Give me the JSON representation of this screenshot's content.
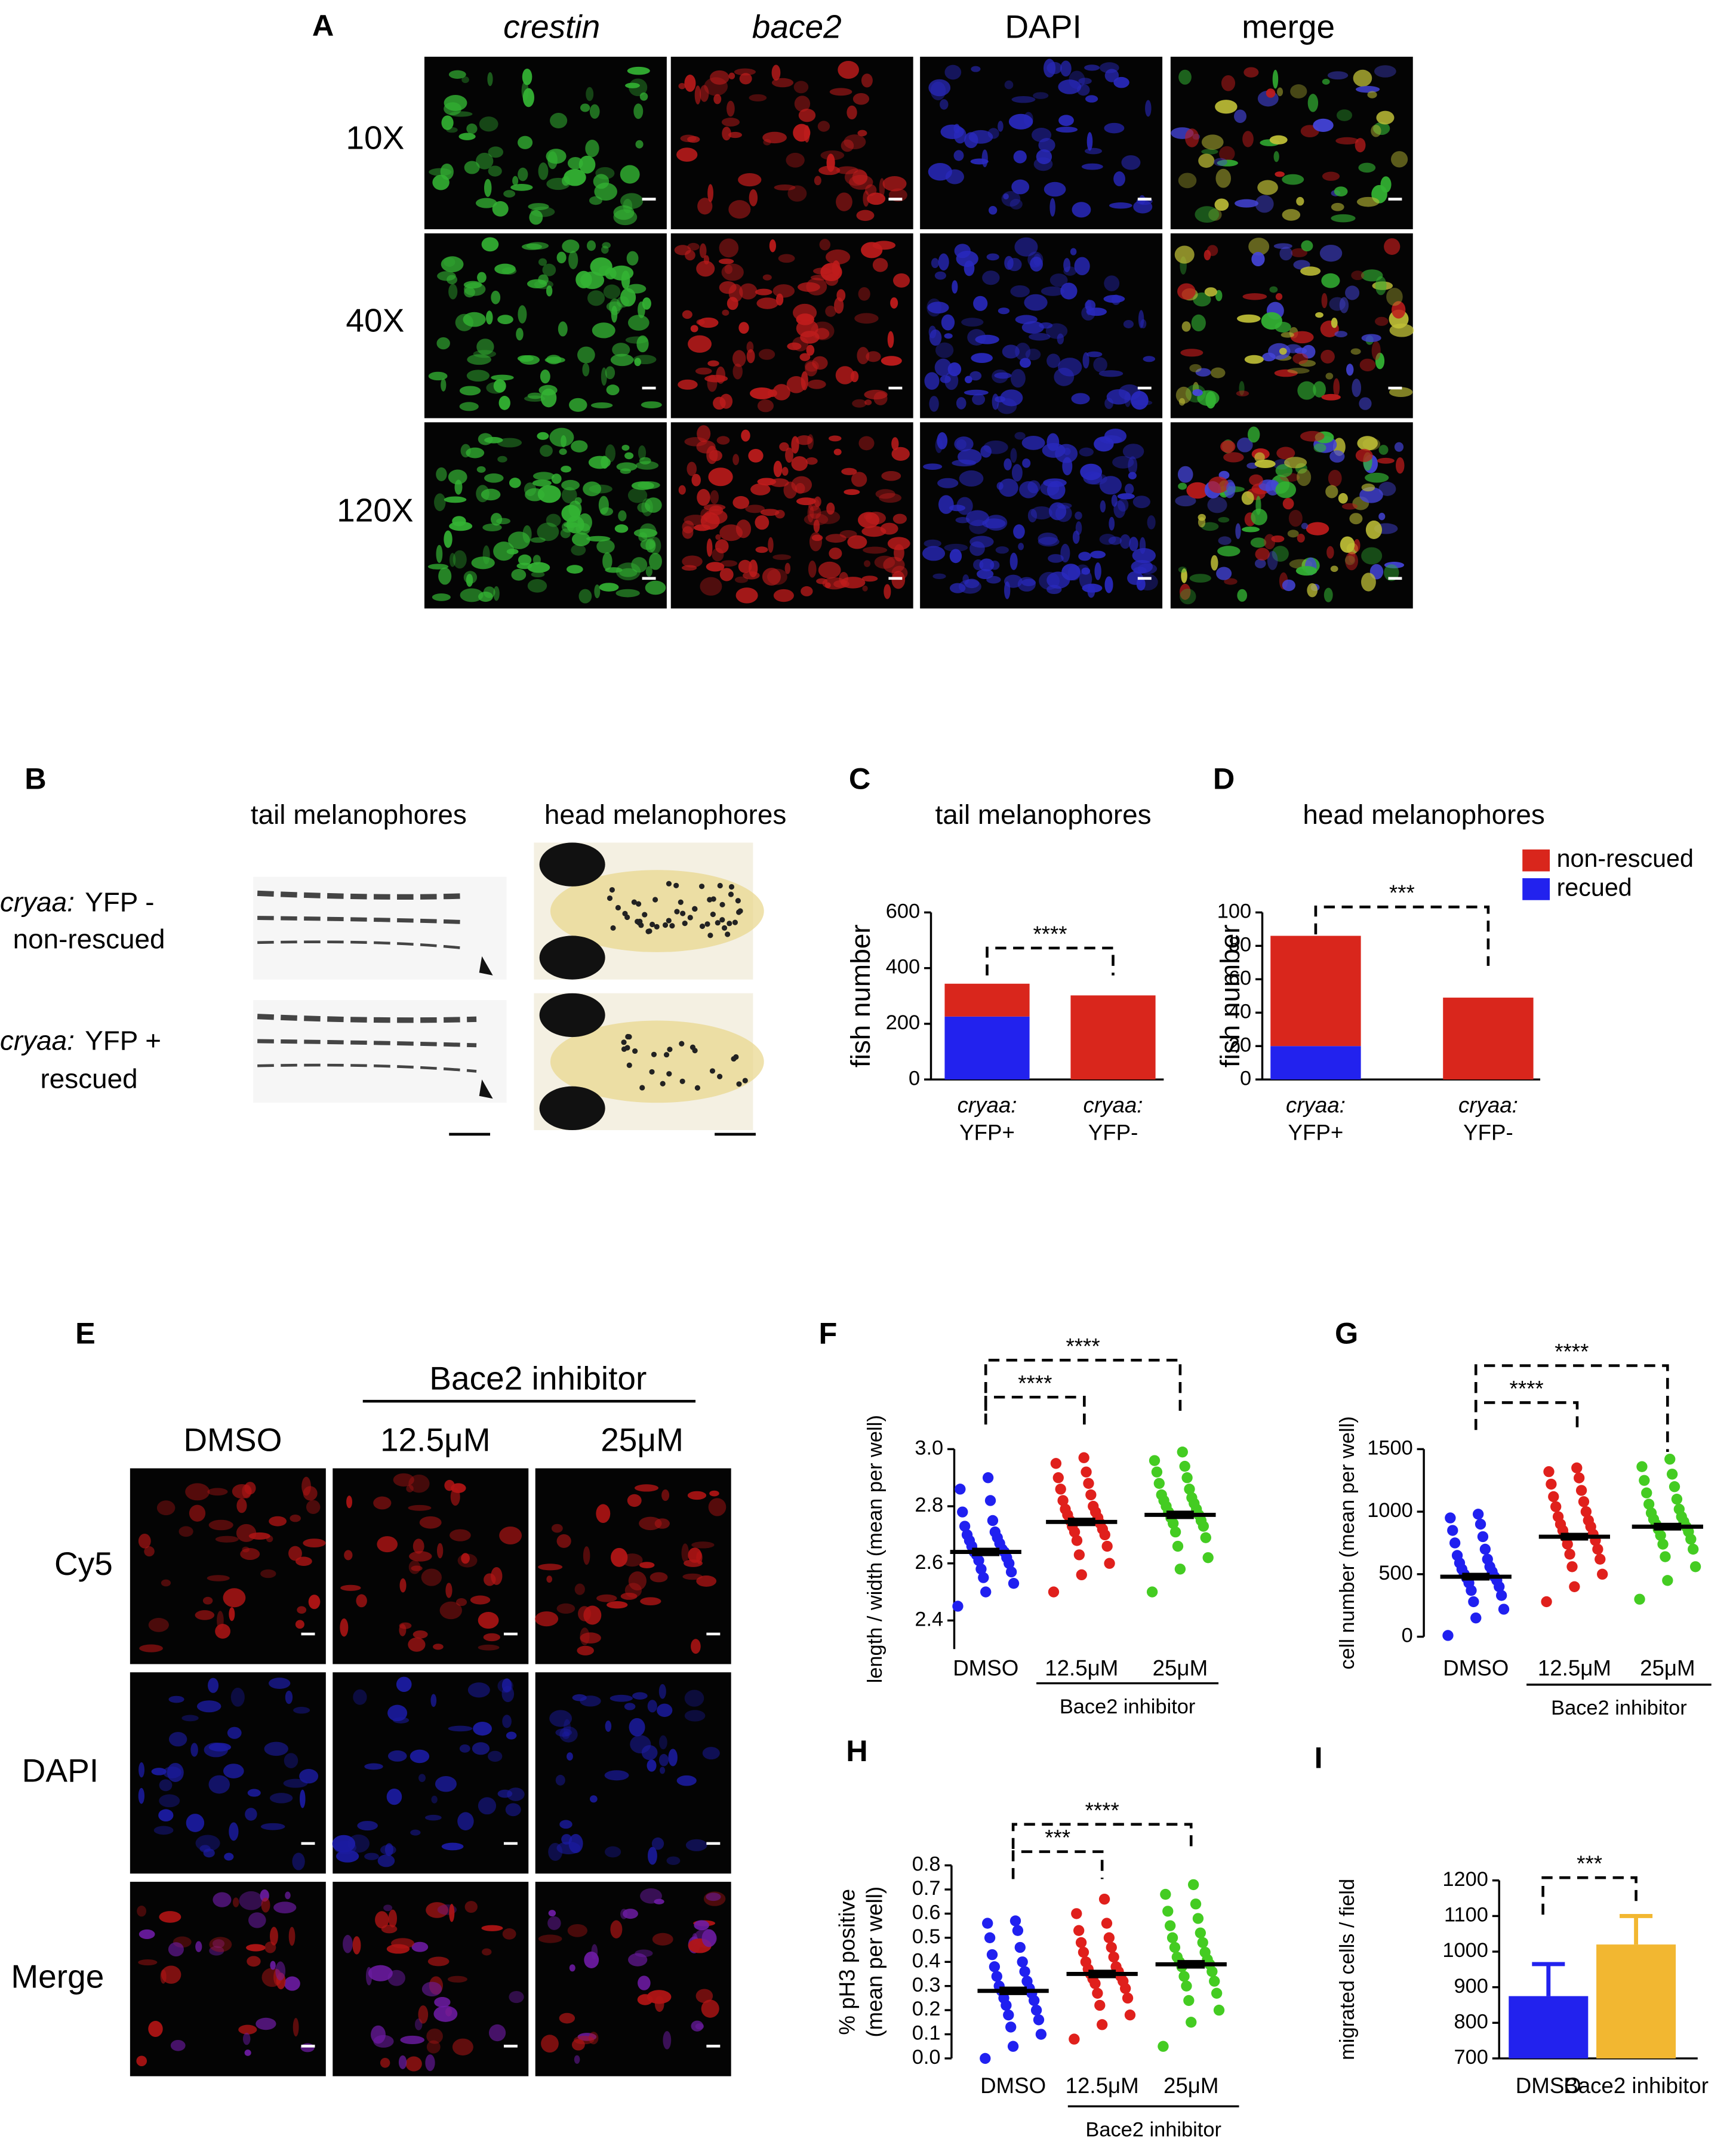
{
  "panel_a": {
    "label": "A",
    "columns": [
      "crestin",
      "bace2",
      "DAPI",
      "merge"
    ],
    "rows": [
      "10X",
      "40X",
      "120X"
    ]
  },
  "panel_b": {
    "label": "B",
    "columns": [
      "tail melanophores",
      "head melanophores"
    ],
    "rows": [
      {
        "gene": "cryaa:",
        "marker": "YFP -",
        "state": "non-rescued"
      },
      {
        "gene": "cryaa:",
        "marker": "YFP +",
        "state": "rescued"
      }
    ]
  },
  "panel_e": {
    "label": "E",
    "group_label": "Bace2 inhibitor",
    "columns": [
      "DMSO",
      "12.5μM",
      "25μM"
    ],
    "rows": [
      "Cy5",
      "DAPI",
      "Merge"
    ]
  },
  "chart_data": [
    {
      "type": "stacked_bar",
      "label": "C",
      "title": "tail melanophores",
      "y_label": [
        "fish number"
      ],
      "categories": [
        {
          "gene": "cryaa:",
          "marker": "YFP+"
        },
        {
          "gene": "cryaa:",
          "marker": "YFP-"
        }
      ],
      "series": [
        {
          "color": "#d9261c",
          "values": [
            118,
            302
          ]
        },
        {
          "color": "#2222ee",
          "values": [
            226,
            0
          ]
        }
      ],
      "ylim": [
        0,
        600
      ],
      "yticks": [
        0,
        200,
        400,
        600
      ],
      "annotations": [
        "****"
      ]
    },
    {
      "type": "stacked_bar",
      "label": "D",
      "title": "head melanophores",
      "y_label": [
        "fish number"
      ],
      "categories": [
        {
          "gene": "cryaa:",
          "marker": "YFP+"
        },
        {
          "gene": "cryaa:",
          "marker": "YFP-"
        }
      ],
      "series": [
        {
          "name": "non-rescued",
          "color": "#d9261c",
          "values": [
            66,
            49
          ]
        },
        {
          "name": "recued",
          "color": "#2222ee",
          "values": [
            20,
            0
          ]
        }
      ],
      "ylim": [
        0,
        100
      ],
      "yticks": [
        0,
        20,
        40,
        60,
        80,
        100
      ],
      "annotations": [
        "***"
      ],
      "legend": "top-right"
    },
    {
      "type": "dotplot",
      "label": "F",
      "y_label": [
        "length / width (mean per well)"
      ],
      "categories": [
        "DMSO",
        "12.5μM",
        "25μM"
      ],
      "group_label": "Bace2 inhibitor",
      "groups": [
        {
          "color": "#2020f0",
          "mean": 2.64,
          "sem": 0.01,
          "values": [
            2.45,
            2.5,
            2.53,
            2.55,
            2.57,
            2.58,
            2.6,
            2.61,
            2.62,
            2.63,
            2.64,
            2.64,
            2.65,
            2.66,
            2.67,
            2.68,
            2.69,
            2.7,
            2.71,
            2.73,
            2.75,
            2.78,
            2.82,
            2.86,
            2.9
          ]
        },
        {
          "color": "#e0201c",
          "mean": 2.745,
          "sem": 0.01,
          "values": [
            2.5,
            2.56,
            2.6,
            2.63,
            2.66,
            2.68,
            2.7,
            2.71,
            2.72,
            2.73,
            2.74,
            2.75,
            2.76,
            2.77,
            2.78,
            2.79,
            2.8,
            2.82,
            2.84,
            2.86,
            2.88,
            2.9,
            2.92,
            2.95,
            2.97
          ]
        },
        {
          "color": "#44cc22",
          "mean": 2.77,
          "sem": 0.01,
          "values": [
            2.5,
            2.58,
            2.62,
            2.66,
            2.69,
            2.71,
            2.73,
            2.74,
            2.75,
            2.76,
            2.77,
            2.78,
            2.79,
            2.8,
            2.81,
            2.82,
            2.83,
            2.84,
            2.86,
            2.88,
            2.9,
            2.92,
            2.94,
            2.96,
            2.99
          ]
        }
      ],
      "ylim": [
        2.3,
        3.0
      ],
      "yticks": [
        2.4,
        2.6,
        2.8,
        {
          "value": 3,
          "label": "3.0"
        }
      ],
      "annotations": [
        "****",
        "****"
      ]
    },
    {
      "type": "dotplot",
      "label": "G",
      "y_label": [
        "cell number (mean per well)"
      ],
      "categories": [
        "DMSO",
        "12.5μM",
        "25μM"
      ],
      "group_label": "Bace2 inhibitor",
      "groups": [
        {
          "color": "#2020f0",
          "mean": 480,
          "sem": 20,
          "values": [
            10,
            150,
            220,
            280,
            330,
            370,
            400,
            430,
            450,
            470,
            480,
            500,
            520,
            540,
            560,
            590,
            620,
            650,
            700,
            750,
            800,
            850,
            900,
            950,
            980
          ]
        },
        {
          "color": "#e0201c",
          "mean": 800,
          "sem": 20,
          "values": [
            280,
            400,
            500,
            560,
            620,
            660,
            700,
            740,
            770,
            800,
            820,
            850,
            880,
            900,
            930,
            960,
            1000,
            1040,
            1080,
            1120,
            1170,
            1220,
            1270,
            1320,
            1350
          ]
        },
        {
          "color": "#44cc22",
          "mean": 880,
          "sem": 20,
          "values": [
            300,
            450,
            560,
            640,
            700,
            740,
            780,
            810,
            840,
            860,
            880,
            900,
            920,
            940,
            960,
            990,
            1020,
            1060,
            1100,
            1150,
            1200,
            1250,
            1300,
            1360,
            1420
          ]
        }
      ],
      "ylim": [
        0,
        1500
      ],
      "yticks": [
        0,
        500,
        1000,
        1500
      ],
      "annotations": [
        "****",
        "****"
      ]
    },
    {
      "type": "dotplot",
      "label": "H",
      "y_label": [
        "% pH3 positive",
        "(mean per well)"
      ],
      "categories": [
        "DMSO",
        "12.5μM",
        "25μM"
      ],
      "group_label": "Bace2 inhibitor",
      "groups": [
        {
          "color": "#2020f0",
          "mean": 0.28,
          "sem": 0.012,
          "values": [
            0,
            0.05,
            0.1,
            0.13,
            0.16,
            0.18,
            0.2,
            0.22,
            0.24,
            0.25,
            0.27,
            0.28,
            0.29,
            0.3,
            0.32,
            0.34,
            0.36,
            0.38,
            0.4,
            0.43,
            0.46,
            0.5,
            0.53,
            0.56,
            0.57
          ]
        },
        {
          "color": "#e0201c",
          "mean": 0.35,
          "sem": 0.012,
          "values": [
            0.08,
            0.14,
            0.18,
            0.22,
            0.25,
            0.27,
            0.29,
            0.31,
            0.32,
            0.33,
            0.34,
            0.35,
            0.36,
            0.37,
            0.38,
            0.4,
            0.42,
            0.44,
            0.46,
            0.48,
            0.5,
            0.53,
            0.56,
            0.6,
            0.66
          ]
        },
        {
          "color": "#44cc22",
          "mean": 0.39,
          "sem": 0.012,
          "values": [
            0.05,
            0.15,
            0.2,
            0.24,
            0.27,
            0.3,
            0.32,
            0.34,
            0.36,
            0.38,
            0.39,
            0.4,
            0.41,
            0.42,
            0.44,
            0.46,
            0.48,
            0.5,
            0.52,
            0.55,
            0.58,
            0.61,
            0.64,
            0.68,
            0.72
          ]
        }
      ],
      "ylim": [
        0,
        0.8
      ],
      "yticks": [
        {
          "value": 0,
          "label": "0.0"
        },
        0.1,
        0.2,
        0.3,
        0.4,
        0.5,
        0.6,
        0.7,
        0.8
      ],
      "annotations": [
        "***",
        "****"
      ]
    },
    {
      "type": "bar",
      "label": "I",
      "y_label": [
        "migrated cells / field"
      ],
      "categories": [
        "DMSO",
        "Bace2 inhibitor"
      ],
      "values": [
        875,
        1020
      ],
      "errors": [
        90,
        80
      ],
      "colors": [
        "#2222ee",
        "#f2b731"
      ],
      "ylim": [
        700,
        1200
      ],
      "yticks": [
        700,
        800,
        900,
        1000,
        1100,
        1200
      ],
      "annotations": [
        "***"
      ]
    }
  ]
}
